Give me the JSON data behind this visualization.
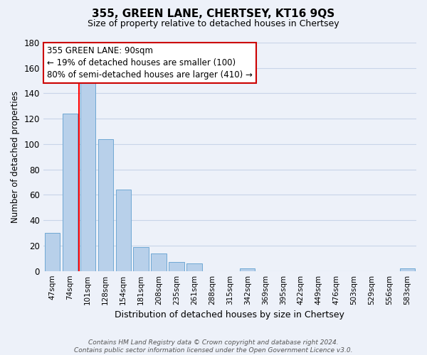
{
  "title": "355, GREEN LANE, CHERTSEY, KT16 9QS",
  "subtitle": "Size of property relative to detached houses in Chertsey",
  "xlabel": "Distribution of detached houses by size in Chertsey",
  "ylabel": "Number of detached properties",
  "bar_labels": [
    "47sqm",
    "74sqm",
    "101sqm",
    "128sqm",
    "154sqm",
    "181sqm",
    "208sqm",
    "235sqm",
    "261sqm",
    "288sqm",
    "315sqm",
    "342sqm",
    "369sqm",
    "395sqm",
    "422sqm",
    "449sqm",
    "476sqm",
    "503sqm",
    "529sqm",
    "556sqm",
    "583sqm"
  ],
  "bar_values": [
    30,
    124,
    148,
    104,
    64,
    19,
    14,
    7,
    6,
    0,
    0,
    2,
    0,
    0,
    0,
    0,
    0,
    0,
    0,
    0,
    2
  ],
  "bar_color": "#b8d0ea",
  "bar_edge_color": "#6fa8d4",
  "ylim": [
    0,
    180
  ],
  "yticks": [
    0,
    20,
    40,
    60,
    80,
    100,
    120,
    140,
    160,
    180
  ],
  "red_line_bar_index": 2,
  "annotation_line1": "355 GREEN LANE: 90sqm",
  "annotation_line2": "← 19% of detached houses are smaller (100)",
  "annotation_line3": "80% of semi-detached houses are larger (410) →",
  "annotation_box_color": "#ffffff",
  "annotation_box_edge": "#cc0000",
  "footer_text": "Contains HM Land Registry data © Crown copyright and database right 2024.\nContains public sector information licensed under the Open Government Licence v3.0.",
  "background_color": "#edf1f9",
  "grid_color": "#c8d4e8",
  "title_fontsize": 11,
  "subtitle_fontsize": 9
}
